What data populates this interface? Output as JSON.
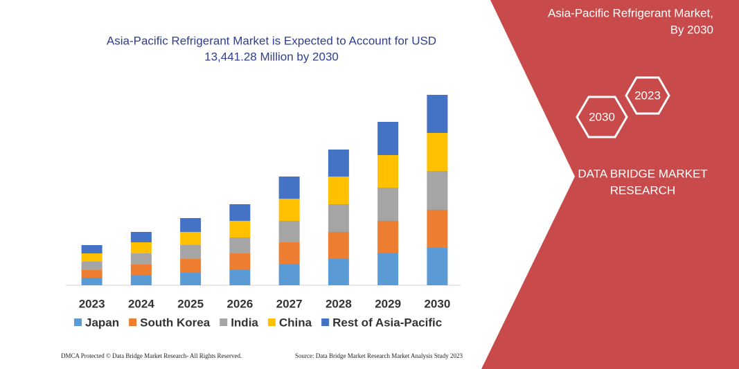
{
  "chart_data": {
    "type": "stacked_bar",
    "title": [
      "Asia-Pacific Refrigerant Market is Expected to Account for USD",
      "13,441.28 Million by 2030"
    ],
    "categories": [
      "2023",
      "2024",
      "2025",
      "2026",
      "2027",
      "2028",
      "2029",
      "2030"
    ],
    "series": [
      {
        "name": "Japan",
        "color": "#5b9bd5",
        "values": [
          11,
          14,
          18,
          22,
          30,
          38,
          46,
          54
        ]
      },
      {
        "name": "South Korea",
        "color": "#ed7d31",
        "values": [
          11,
          16,
          20,
          24,
          32,
          39,
          47,
          55
        ]
      },
      {
        "name": "India",
        "color": "#a5a5a5",
        "values": [
          12,
          16,
          20,
          23,
          31,
          40,
          48,
          56
        ]
      },
      {
        "name": "China",
        "color": "#ffc000",
        "values": [
          12,
          16,
          19,
          24,
          32,
          40,
          47,
          55
        ]
      },
      {
        "name": "Rest of Asia-Pacific",
        "color": "#4472c4",
        "values": [
          12,
          15,
          20,
          24,
          32,
          39,
          48,
          55
        ]
      }
    ]
  },
  "panel": {
    "title": [
      "Asia-Pacific Refrigerant Market,",
      "By 2030"
    ],
    "hexagons": [
      "2023",
      "2030"
    ],
    "brand": [
      "DATA BRIDGE MARKET",
      "RESEARCH"
    ]
  },
  "footer": {
    "left": "DMCA Protected © Data Bridge Market Research-  All Rights Reserved.",
    "right": "Source: Data Bridge Market Research  Market Analysis Study 2023"
  }
}
